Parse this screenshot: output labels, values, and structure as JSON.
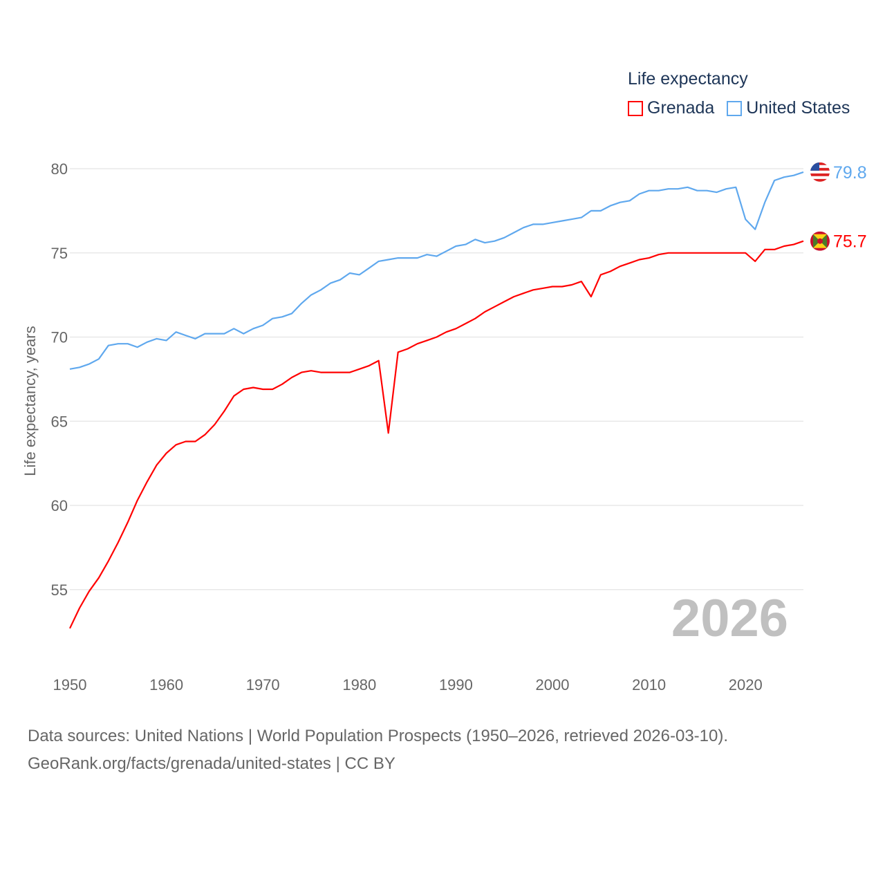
{
  "chart_data": {
    "type": "line",
    "title": "",
    "xlabel": "",
    "ylabel": "Life expectancy, years",
    "xlim": [
      1950,
      2026
    ],
    "ylim": [
      52,
      81
    ],
    "yticks": [
      55,
      60,
      65,
      70,
      75,
      80
    ],
    "xticks": [
      1950,
      1960,
      1970,
      1980,
      1990,
      2000,
      2010,
      2020
    ],
    "grid": true,
    "legend_title": "Life expectancy",
    "legend_position": "top-right",
    "year_watermark": "2026",
    "x": [
      1950,
      1951,
      1952,
      1953,
      1954,
      1955,
      1956,
      1957,
      1958,
      1959,
      1960,
      1961,
      1962,
      1963,
      1964,
      1965,
      1966,
      1967,
      1968,
      1969,
      1970,
      1971,
      1972,
      1973,
      1974,
      1975,
      1976,
      1977,
      1978,
      1979,
      1980,
      1981,
      1982,
      1983,
      1984,
      1985,
      1986,
      1987,
      1988,
      1989,
      1990,
      1991,
      1992,
      1993,
      1994,
      1995,
      1996,
      1997,
      1998,
      1999,
      2000,
      2001,
      2002,
      2003,
      2004,
      2005,
      2006,
      2007,
      2008,
      2009,
      2010,
      2011,
      2012,
      2013,
      2014,
      2015,
      2016,
      2017,
      2018,
      2019,
      2020,
      2021,
      2022,
      2023,
      2024,
      2025,
      2026
    ],
    "series": [
      {
        "name": "Grenada",
        "color": "#ff0000",
        "end_label": "75.7",
        "flag": "grenada-flag",
        "values": [
          52.7,
          53.9,
          54.9,
          55.7,
          56.7,
          57.8,
          59.0,
          60.3,
          61.4,
          62.4,
          63.1,
          63.6,
          63.8,
          63.8,
          64.2,
          64.8,
          65.6,
          66.5,
          66.9,
          67.0,
          66.9,
          66.9,
          67.2,
          67.6,
          67.9,
          68.0,
          67.9,
          67.9,
          67.9,
          67.9,
          68.1,
          68.3,
          68.6,
          64.3,
          69.1,
          69.3,
          69.6,
          69.8,
          70.0,
          70.3,
          70.5,
          70.8,
          71.1,
          71.5,
          71.8,
          72.1,
          72.4,
          72.6,
          72.8,
          72.9,
          73.0,
          73.0,
          73.1,
          73.3,
          72.4,
          73.7,
          73.9,
          74.2,
          74.4,
          74.6,
          74.7,
          74.9,
          75.0,
          75.0,
          75.0,
          75.0,
          75.0,
          75.0,
          75.0,
          75.0,
          75.0,
          74.5,
          75.2,
          75.2,
          75.4,
          75.5,
          75.7
        ]
      },
      {
        "name": "United States",
        "color": "#5fa8ee",
        "end_label": "79.8",
        "flag": "us-flag",
        "values": [
          68.1,
          68.2,
          68.4,
          68.7,
          69.5,
          69.6,
          69.6,
          69.4,
          69.7,
          69.9,
          69.8,
          70.3,
          70.1,
          69.9,
          70.2,
          70.2,
          70.2,
          70.5,
          70.2,
          70.5,
          70.7,
          71.1,
          71.2,
          71.4,
          72.0,
          72.5,
          72.8,
          73.2,
          73.4,
          73.8,
          73.7,
          74.1,
          74.5,
          74.6,
          74.7,
          74.7,
          74.7,
          74.9,
          74.8,
          75.1,
          75.4,
          75.5,
          75.8,
          75.6,
          75.7,
          75.9,
          76.2,
          76.5,
          76.7,
          76.7,
          76.8,
          76.9,
          77.0,
          77.1,
          77.5,
          77.5,
          77.8,
          78.0,
          78.1,
          78.5,
          78.7,
          78.7,
          78.8,
          78.8,
          78.9,
          78.7,
          78.7,
          78.6,
          78.8,
          78.9,
          77.0,
          76.4,
          78.0,
          79.3,
          79.5,
          79.6,
          79.8
        ]
      }
    ]
  },
  "footer": {
    "line1": "Data sources: United Nations | World Population Prospects (1950–2026, retrieved 2026-03-10).",
    "line2": "GeoRank.org/facts/grenada/united-states | CC BY"
  }
}
